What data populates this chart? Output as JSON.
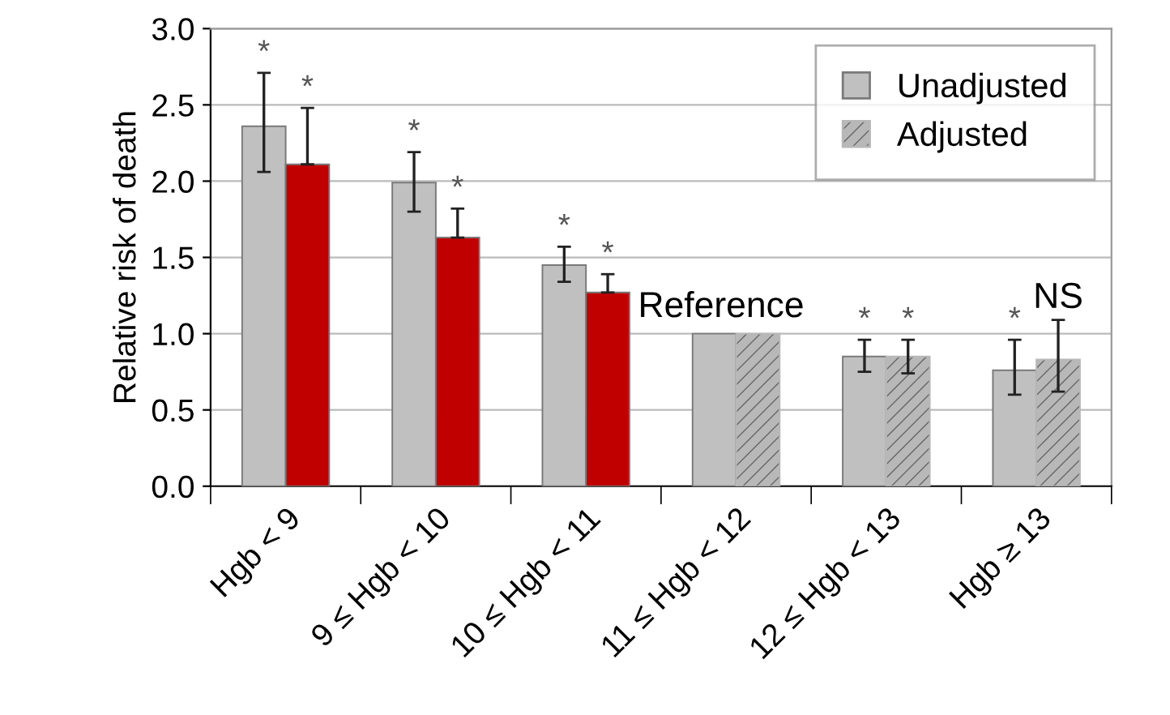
{
  "chart_data": {
    "type": "bar",
    "ylabel": "Relative risk of death",
    "categories": [
      "Hgb < 9",
      "9 ≤ Hgb < 10",
      "10 ≤ Hgb < 11",
      "11 ≤ Hgb < 12",
      "12 ≤ Hgb < 13",
      "Hgb ≥ 13"
    ],
    "series": [
      {
        "name": "Unadjusted",
        "color": "#c0c0c0",
        "values": [
          2.36,
          1.99,
          1.45,
          1.0,
          0.85,
          0.76
        ],
        "errors": [
          [
            2.06,
            2.71
          ],
          [
            1.8,
            2.19
          ],
          [
            1.34,
            1.57
          ],
          null,
          [
            0.75,
            0.96
          ],
          [
            0.6,
            0.96
          ]
        ],
        "value_labels": [
          "*",
          "*",
          "*",
          null,
          "*",
          "*"
        ]
      },
      {
        "name": "Adjusted",
        "color": "#b8b8b8",
        "colors": [
          "#c00000",
          "#c00000",
          "#c00000",
          "#b8b8b8",
          "#b8b8b8",
          "#b8b8b8"
        ],
        "values": [
          2.11,
          1.63,
          1.27,
          1.0,
          0.85,
          0.83
        ],
        "errors": [
          [
            2.11,
            2.48
          ],
          [
            1.63,
            1.82
          ],
          [
            1.27,
            1.39
          ],
          null,
          [
            0.74,
            0.96
          ],
          [
            0.62,
            1.09
          ]
        ],
        "value_labels": [
          "*",
          "*",
          "*",
          null,
          "*",
          "NS"
        ]
      }
    ],
    "annotations": [
      {
        "text": "Reference",
        "x": "11 ≤ Hgb < 12",
        "y": 1.0
      }
    ],
    "ylim": [
      0,
      3
    ],
    "yticks": [
      {
        "value": 0,
        "label": "0.0"
      },
      {
        "value": 0.5,
        "label": "0.5"
      },
      {
        "value": 1,
        "label": "1.0"
      },
      {
        "value": 1.5,
        "label": "1.5"
      },
      {
        "value": 2,
        "label": "2.0"
      },
      {
        "value": 2.5,
        "label": "2.5"
      },
      {
        "value": 3,
        "label": "3.0"
      }
    ],
    "grid": "y",
    "legend": "top right"
  }
}
